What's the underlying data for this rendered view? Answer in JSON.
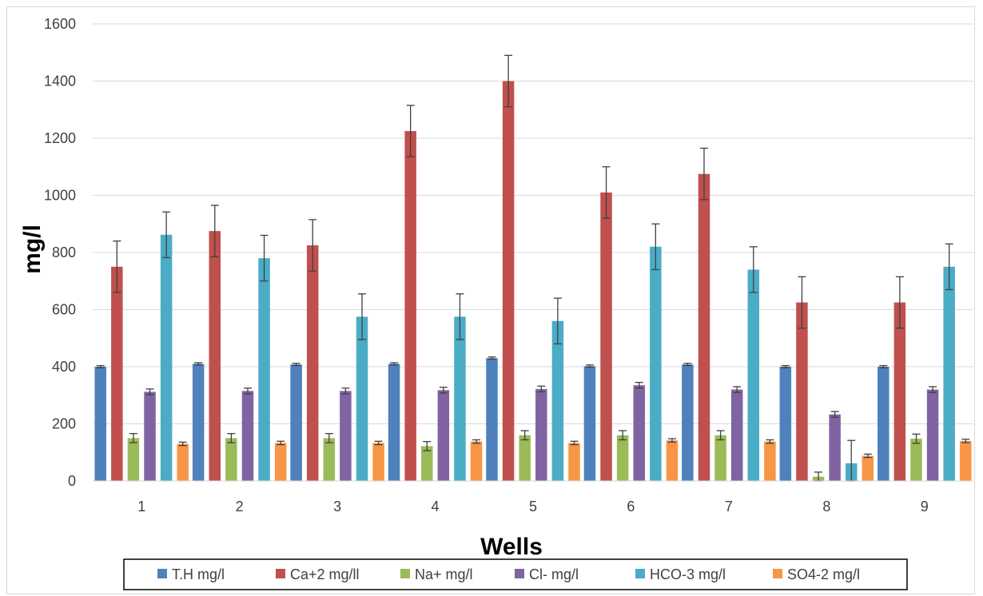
{
  "chart_data": {
    "type": "bar",
    "title": "",
    "xlabel": "Wells",
    "ylabel": "mg/l",
    "categories": [
      "1",
      "2",
      "3",
      "4",
      "5",
      "6",
      "7",
      "8",
      "9"
    ],
    "ylim": [
      0,
      1600
    ],
    "yticks": [
      "0",
      "200",
      "400",
      "600",
      "800",
      "1000",
      "1200",
      "1400",
      "1600"
    ],
    "grid": true,
    "legend_position": "bottom",
    "error_bars": true,
    "series": [
      {
        "name": "T.H mg/l",
        "color": "#4f81bd",
        "values": [
          400,
          410,
          408,
          410,
          430,
          402,
          408,
          400,
          400
        ],
        "errors": [
          4,
          4,
          4,
          4,
          4,
          4,
          4,
          4,
          4
        ]
      },
      {
        "name": "Ca+2 mg/ll",
        "color": "#c0504d",
        "values": [
          750,
          875,
          825,
          1225,
          1400,
          1010,
          1075,
          625,
          625
        ],
        "errors": [
          90,
          90,
          90,
          90,
          90,
          90,
          90,
          90,
          90
        ]
      },
      {
        "name": "Na+ mg/l",
        "color": "#9bbb59",
        "values": [
          150,
          150,
          150,
          122,
          160,
          160,
          160,
          15,
          148
        ],
        "errors": [
          16,
          16,
          16,
          16,
          16,
          16,
          16,
          16,
          16
        ]
      },
      {
        "name": "Cl- mg/l",
        "color": "#8064a2",
        "values": [
          312,
          315,
          315,
          318,
          322,
          335,
          320,
          233,
          320
        ],
        "errors": [
          10,
          10,
          10,
          10,
          10,
          10,
          10,
          10,
          10
        ]
      },
      {
        "name": "HCO-3 mg/l",
        "color": "#4bacc6",
        "values": [
          862,
          780,
          575,
          575,
          560,
          820,
          740,
          62,
          750
        ],
        "errors": [
          80,
          80,
          80,
          80,
          80,
          80,
          80,
          80,
          80
        ]
      },
      {
        "name": "SO4-2 mg/l",
        "color": "#f79646",
        "values": [
          130,
          133,
          133,
          138,
          133,
          142,
          138,
          88,
          140
        ],
        "errors": [
          6,
          6,
          6,
          6,
          6,
          6,
          6,
          6,
          6
        ]
      }
    ]
  }
}
